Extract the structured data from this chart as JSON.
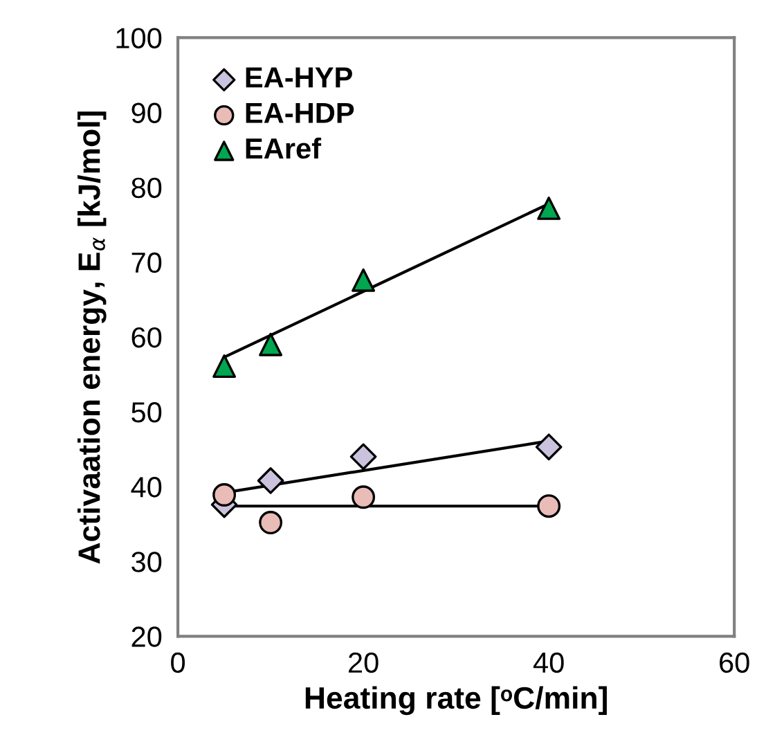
{
  "chart_data": {
    "type": "scatter",
    "xlabel": "Heating rate [ᵒC/min]",
    "ylabel": "Activaation energy, E$_{α}$ [kJ/mol]",
    "xlim": [
      0,
      60
    ],
    "xticks": [
      0,
      20,
      40,
      60
    ],
    "ylim": [
      20,
      100
    ],
    "yticks": [
      20,
      30,
      40,
      50,
      60,
      70,
      80,
      90,
      100
    ],
    "grid": false,
    "legend": "top left",
    "series": [
      {
        "name": "EA-HYP",
        "color": "#cbc3dd",
        "marker": "diamond",
        "x": [
          5,
          10,
          20,
          40
        ],
        "values": [
          37.6,
          40.8,
          44,
          45.3
        ]
      },
      {
        "name": "EA-HDP",
        "color": "#e9bcb8",
        "marker": "circle",
        "x": [
          5,
          10,
          20,
          40
        ],
        "values": [
          38.9,
          35.2,
          38.6,
          37.4
        ]
      },
      {
        "name": "EAref",
        "color": "#00a650",
        "marker": "triangle",
        "x": [
          5,
          10,
          20,
          40
        ],
        "values": [
          56.1,
          59,
          67.6,
          77.2
        ]
      },
      {
        "type": "line",
        "color": "#000000",
        "marker": "none",
        "x": [
          5,
          40
        ],
        "values": [
          39.2,
          46.1
        ]
      },
      {
        "type": "line",
        "color": "#000000",
        "marker": "none",
        "x": [
          5,
          40
        ],
        "values": [
          37.4,
          37.4
        ]
      },
      {
        "type": "line",
        "color": "#000000",
        "marker": "none",
        "x": [
          5,
          40
        ],
        "values": [
          57.3,
          77.8
        ]
      }
    ]
  }
}
